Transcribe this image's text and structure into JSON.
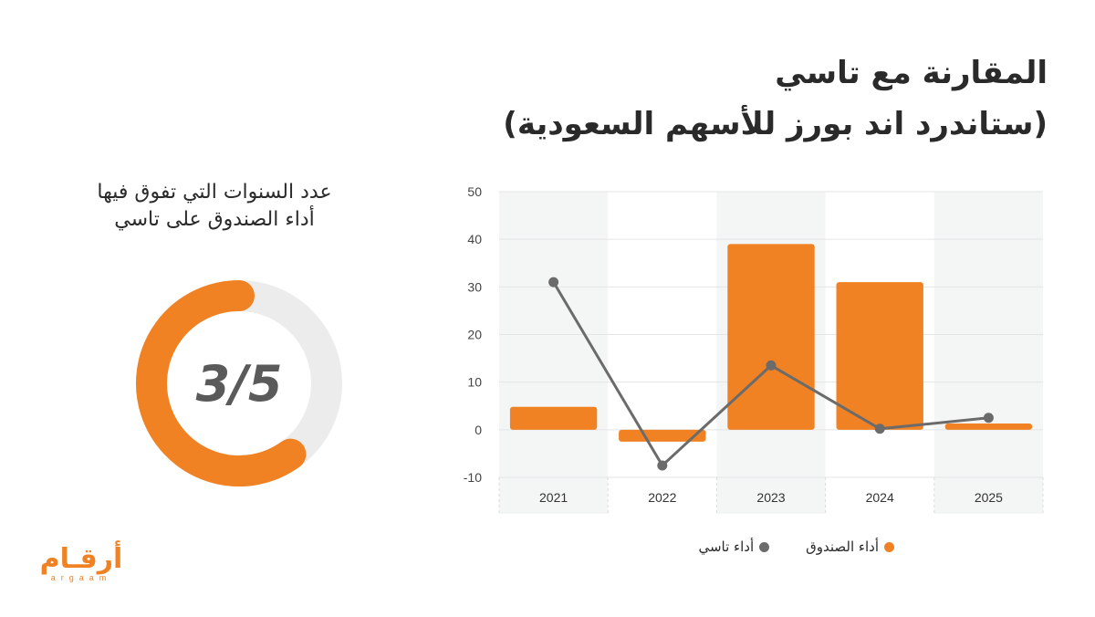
{
  "title": {
    "line1": "المقارنة مع تاسي",
    "line2": "(ستاندرد اند بورز للأسهم السعودية)"
  },
  "donut": {
    "caption_line1": "عدد السنوات التي تفوق فيها",
    "caption_line2": "أداء الصندوق على تاسي",
    "value_text": "3/5",
    "fraction": 0.6,
    "fill_color": "#f08223",
    "track_color": "#ececec"
  },
  "chart_data": {
    "type": "bar",
    "categories": [
      "2021",
      "2022",
      "2023",
      "2024",
      "2025"
    ],
    "series": [
      {
        "name": "أداء الصندوق",
        "type": "bar",
        "color": "#f08223",
        "values": [
          4.8,
          -2.5,
          39,
          31,
          1.3
        ]
      },
      {
        "name": "أداء تاسي",
        "type": "line",
        "color": "#6b6b6b",
        "values": [
          31,
          -7.5,
          13.5,
          0.2,
          2.5
        ]
      }
    ],
    "yticks": [
      50,
      40,
      30,
      20,
      10,
      0,
      -10
    ],
    "ylim": [
      -10,
      50
    ],
    "grid": true,
    "legend_position": "bottom"
  },
  "legend": {
    "fund_label": "أداء الصندوق",
    "tasi_label": "أداء تاسي"
  },
  "logo": {
    "arabic": "أرقـام",
    "latin": "argaam"
  },
  "colors": {
    "accent": "#f08223",
    "line": "#6b6b6b",
    "band": "#f4f5f5"
  }
}
